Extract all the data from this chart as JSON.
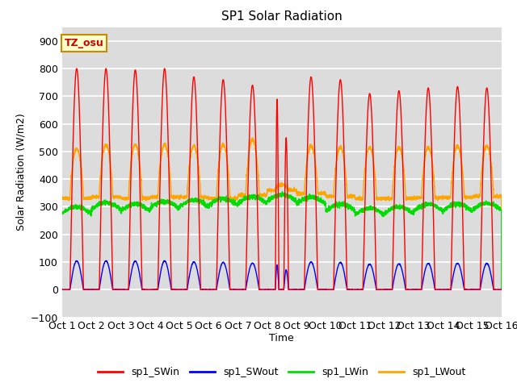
{
  "title": "SP1 Solar Radiation",
  "ylabel": "Solar Radiation (W/m2)",
  "xlabel": "Time",
  "ylim": [
    -100,
    950
  ],
  "xlim": [
    0,
    15
  ],
  "xtick_labels": [
    "Oct 1",
    "Oct 2",
    "Oct 3",
    "Oct 4",
    "Oct 5",
    "Oct 6",
    "Oct 7",
    "Oct 8",
    "Oct 9",
    "Oct 10",
    "Oct 11",
    "Oct 12",
    "Oct 13",
    "Oct 14",
    "Oct 15",
    "Oct 16"
  ],
  "ytick_values": [
    -100,
    0,
    100,
    200,
    300,
    400,
    500,
    600,
    700,
    800,
    900
  ],
  "bg_color": "#dcdcdc",
  "grid_color": "white",
  "colors": {
    "sp1_SWin": "red",
    "sp1_SWout": "blue",
    "sp1_LWin": "#00dd00",
    "sp1_LWout": "orange"
  },
  "annotation_text": "TZ_osu",
  "annotation_bg": "#ffffcc",
  "annotation_edge": "#cc8800",
  "swi_peaks": [
    800,
    800,
    795,
    800,
    770,
    760,
    740,
    690,
    770,
    760,
    710,
    720,
    730,
    735,
    730
  ],
  "lwin_base": [
    275,
    290,
    285,
    295,
    300,
    305,
    312,
    320,
    310,
    285,
    270,
    275,
    285,
    285,
    288
  ],
  "lwout_base": [
    330,
    335,
    330,
    335,
    335,
    330,
    342,
    360,
    348,
    338,
    330,
    330,
    333,
    334,
    338
  ],
  "lwout_peaks": [
    510,
    525,
    525,
    525,
    520,
    525,
    545,
    380,
    520,
    515,
    515,
    515,
    515,
    520,
    520
  ]
}
